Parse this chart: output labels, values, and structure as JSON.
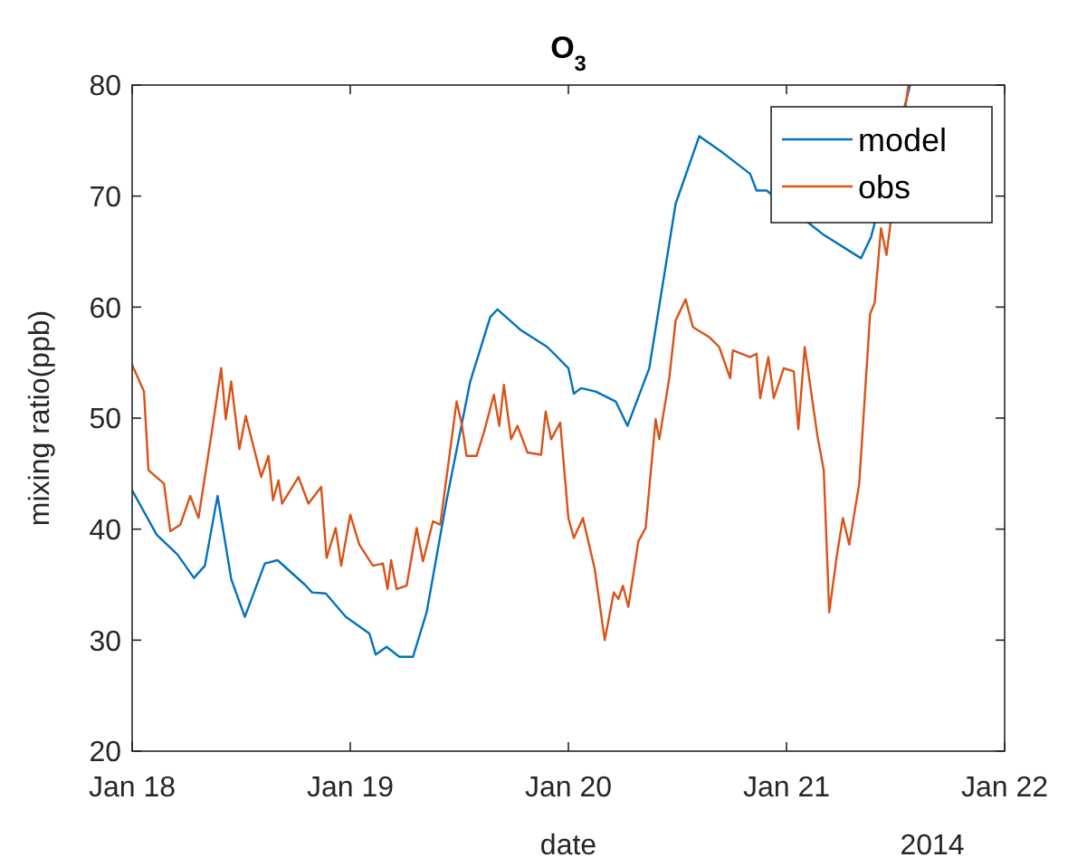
{
  "chart_data": {
    "type": "line",
    "title": "O$_{3}$",
    "xlabel": "date",
    "ylabel": "mixing ratio(ppb)",
    "annotations": [
      "2014"
    ],
    "xlim": [
      "2014-01-18",
      "2014-01-22"
    ],
    "xticks": [
      {
        "value": "2014-01-18",
        "label": "Jan 18"
      },
      {
        "value": "2014-01-19",
        "label": "Jan 19"
      },
      {
        "value": "2014-01-20",
        "label": "Jan 20"
      },
      {
        "value": "2014-01-21",
        "label": "Jan 21"
      },
      {
        "value": "2014-01-22",
        "label": "Jan 22"
      }
    ],
    "ylim": [
      20,
      80
    ],
    "yticks": [
      20,
      30,
      40,
      50,
      60,
      70,
      80
    ],
    "grid": false,
    "legend": "top right",
    "line_style": "solid",
    "series": [
      {
        "name": "model",
        "color": "#0072bd",
        "x": [
          "2014-01-18T00:00",
          "2014-01-18T02:42",
          "2014-01-18T05:00",
          "2014-01-18T06:48",
          "2014-01-18T08:00",
          "2014-01-18T09:24",
          "2014-01-18T10:54",
          "2014-01-18T12:24",
          "2014-01-18T14:36",
          "2014-01-18T16:00",
          "2014-01-18T19:00",
          "2014-01-18T19:48",
          "2014-01-18T21:18",
          "2014-01-18T23:30",
          "2014-01-19T02:06",
          "2014-01-19T02:48",
          "2014-01-19T04:00",
          "2014-01-19T05:24",
          "2014-01-19T06:54",
          "2014-01-19T08:24",
          "2014-01-19T10:36",
          "2014-01-19T13:12",
          "2014-01-19T15:24",
          "2014-01-19T16:12",
          "2014-01-19T18:48",
          "2014-01-19T21:42",
          "2014-01-20T00:00",
          "2014-01-20T00:36",
          "2014-01-20T01:24",
          "2014-01-20T03:00",
          "2014-01-20T05:12",
          "2014-01-20T06:30",
          "2014-01-20T08:54",
          "2014-01-20T11:48",
          "2014-01-20T14:24",
          "2014-01-20T17:00",
          "2014-01-20T20:00",
          "2014-01-20T20:42",
          "2014-01-20T21:48",
          "2014-01-21T02:42",
          "2014-01-21T04:06",
          "2014-01-21T08:12",
          "2014-01-21T09:18",
          "2014-01-21T13:36"
        ],
        "values": [
          43.5,
          39.5,
          37.7,
          35.6,
          36.7,
          43.0,
          35.5,
          32.1,
          36.9,
          37.2,
          35.0,
          34.3,
          34.2,
          32.1,
          30.6,
          28.7,
          29.4,
          28.5,
          28.5,
          32.5,
          42.6,
          53.3,
          59.1,
          59.8,
          57.9,
          56.4,
          54.5,
          52.2,
          52.7,
          52.4,
          51.5,
          49.3,
          54.5,
          69.3,
          75.4,
          73.9,
          72.0,
          70.5,
          70.5,
          67.4,
          66.5,
          64.4,
          66.3,
          80.0
        ]
      },
      {
        "name": "obs",
        "color": "#d95319",
        "x": [
          "2014-01-18T00:00",
          "2014-01-18T01:18",
          "2014-01-18T01:48",
          "2014-01-18T03:30",
          "2014-01-18T04:12",
          "2014-01-18T05:18",
          "2014-01-18T06:24",
          "2014-01-18T07:18",
          "2014-01-18T08:42",
          "2014-01-18T09:48",
          "2014-01-18T10:18",
          "2014-01-18T10:54",
          "2014-01-18T11:48",
          "2014-01-18T12:30",
          "2014-01-18T14:12",
          "2014-01-18T15:00",
          "2014-01-18T15:30",
          "2014-01-18T16:06",
          "2014-01-18T16:30",
          "2014-01-18T18:18",
          "2014-01-18T19:24",
          "2014-01-18T20:48",
          "2014-01-18T21:24",
          "2014-01-18T22:24",
          "2014-01-18T23:00",
          "2014-01-19T00:00",
          "2014-01-19T01:00",
          "2014-01-19T02:30",
          "2014-01-19T03:36",
          "2014-01-19T04:06",
          "2014-01-19T04:30",
          "2014-01-19T05:06",
          "2014-01-19T06:12",
          "2014-01-19T07:18",
          "2014-01-19T08:00",
          "2014-01-19T09:06",
          "2014-01-19T09:54",
          "2014-01-19T10:36",
          "2014-01-19T11:42",
          "2014-01-19T12:18",
          "2014-01-19T12:48",
          "2014-01-19T13:54",
          "2014-01-19T14:42",
          "2014-01-19T15:48",
          "2014-01-19T16:24",
          "2014-01-19T16:54",
          "2014-01-19T17:42",
          "2014-01-19T18:24",
          "2014-01-19T19:30",
          "2014-01-19T21:00",
          "2014-01-19T21:30",
          "2014-01-19T22:06",
          "2014-01-19T23:06",
          "2014-01-20T00:00",
          "2014-01-20T00:36",
          "2014-01-20T01:36",
          "2014-01-20T02:54",
          "2014-01-20T04:00",
          "2014-01-20T05:00",
          "2014-01-20T05:30",
          "2014-01-20T06:00",
          "2014-01-20T06:36",
          "2014-01-20T07:42",
          "2014-01-20T08:30",
          "2014-01-20T09:36",
          "2014-01-20T10:00",
          "2014-01-20T11:06",
          "2014-01-20T11:48",
          "2014-01-20T12:54",
          "2014-01-20T13:42",
          "2014-01-20T15:30",
          "2014-01-20T16:36",
          "2014-01-20T17:48",
          "2014-01-20T18:06",
          "2014-01-20T20:00",
          "2014-01-20T20:42",
          "2014-01-20T21:06",
          "2014-01-20T22:00",
          "2014-01-20T22:36",
          "2014-01-20T23:42",
          "2014-01-21T00:48",
          "2014-01-21T01:18",
          "2014-01-21T02:00",
          "2014-01-21T02:36",
          "2014-01-21T03:24",
          "2014-01-21T04:06",
          "2014-01-21T04:42",
          "2014-01-21T05:30",
          "2014-01-21T06:12",
          "2014-01-21T06:54",
          "2014-01-21T08:00",
          "2014-01-21T09:12",
          "2014-01-21T09:42",
          "2014-01-21T10:24",
          "2014-01-21T11:00",
          "2014-01-21T13:24"
        ],
        "values": [
          54.8,
          52.4,
          45.3,
          44.1,
          39.8,
          40.4,
          43.0,
          41.0,
          48.4,
          54.5,
          49.9,
          53.3,
          47.2,
          50.2,
          44.7,
          46.6,
          42.6,
          44.4,
          42.3,
          44.7,
          42.3,
          43.8,
          37.4,
          40.1,
          36.7,
          41.3,
          38.6,
          36.7,
          36.9,
          34.6,
          37.2,
          34.6,
          34.9,
          40.1,
          37.1,
          40.7,
          40.4,
          44.7,
          51.5,
          49.3,
          46.6,
          46.6,
          48.7,
          52.1,
          49.3,
          53.0,
          48.1,
          49.3,
          46.9,
          46.7,
          50.6,
          48.1,
          49.6,
          41.0,
          39.2,
          41.0,
          36.4,
          30.0,
          34.3,
          33.7,
          34.9,
          33.0,
          38.9,
          40.1,
          49.9,
          48.1,
          53.6,
          58.8,
          60.7,
          58.2,
          57.3,
          56.4,
          53.6,
          56.1,
          55.5,
          55.8,
          51.8,
          55.5,
          51.8,
          54.5,
          54.2,
          49.0,
          56.4,
          53.0,
          48.4,
          45.3,
          32.5,
          37.4,
          41.0,
          38.6,
          44.1,
          59.4,
          60.4,
          67.1,
          64.7,
          80.0
        ]
      }
    ]
  }
}
